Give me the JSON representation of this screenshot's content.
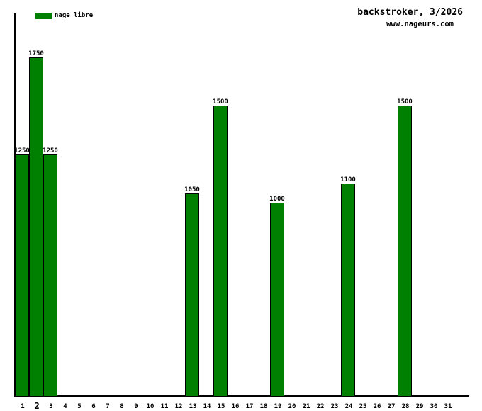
{
  "header": {
    "title": "backstroker, 3/2026",
    "site": "www.nageurs.com"
  },
  "legend": {
    "label": "nage libre",
    "color": "#008000"
  },
  "colors": {
    "bar_fill": "#008000",
    "axis": "#000000",
    "text": "#000000",
    "background": "#ffffff"
  },
  "chart_data": {
    "type": "bar",
    "title": "backstroker, 3/2026",
    "watermark": "www.nageurs.com",
    "xlabel": "",
    "ylabel": "",
    "grid": false,
    "legend_position": "top-left",
    "categories": [
      "1",
      "2",
      "3",
      "4",
      "5",
      "6",
      "7",
      "8",
      "9",
      "10",
      "11",
      "12",
      "13",
      "14",
      "15",
      "16",
      "17",
      "18",
      "19",
      "20",
      "21",
      "22",
      "23",
      "24",
      "25",
      "26",
      "27",
      "28",
      "29",
      "30",
      "31"
    ],
    "highlighted_category": "2",
    "series": [
      {
        "name": "nage libre",
        "color": "#008000",
        "points": [
          {
            "x": 1,
            "y": 1250
          },
          {
            "x": 2,
            "y": 1750
          },
          {
            "x": 3,
            "y": 1250
          },
          {
            "x": 13,
            "y": 1050
          },
          {
            "x": 15,
            "y": 1500
          },
          {
            "x": 19,
            "y": 1000
          },
          {
            "x": 24,
            "y": 1100
          },
          {
            "x": 28,
            "y": 1500
          }
        ]
      }
    ],
    "value_labels_visible": true,
    "y_axis_labels_visible": false
  }
}
